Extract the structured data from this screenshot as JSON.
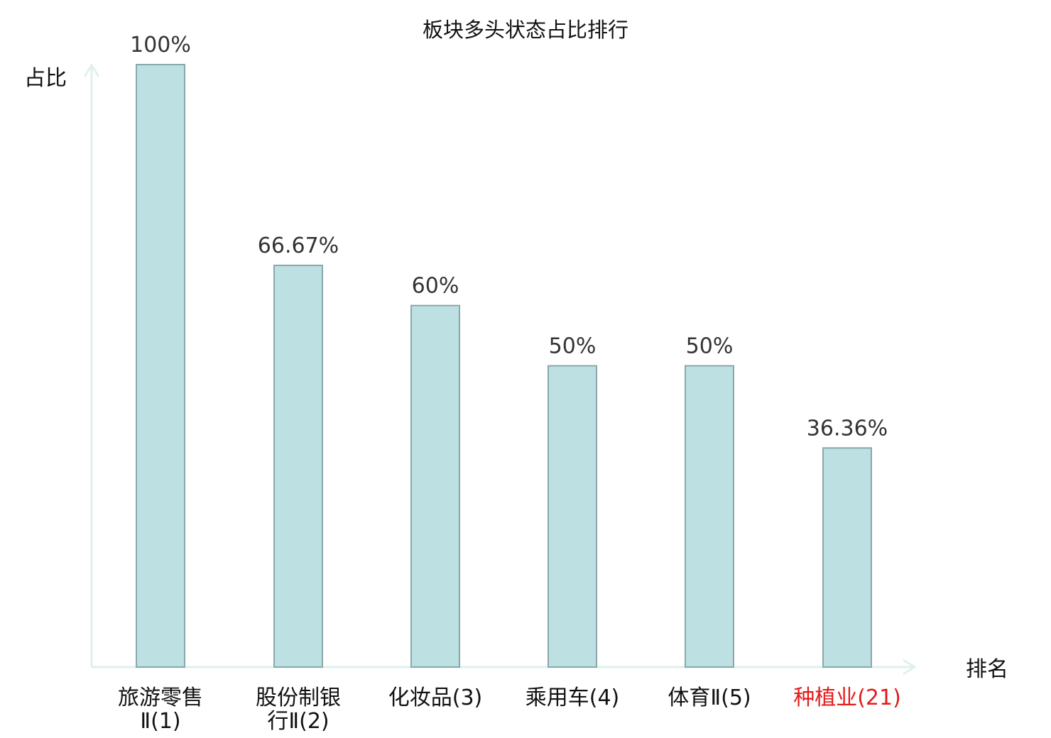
{
  "chart_data": {
    "type": "bar",
    "title": "板块多头状态占比排行",
    "ylabel": "占比",
    "xlabel": "排名",
    "ylim": [
      0,
      100
    ],
    "value_suffix": "%",
    "grid": false,
    "bar_color": "#bde0e3",
    "bar_edge_color": "#8aa8ab",
    "axis_color": "#dff1ee",
    "highlight_color": "#e41a1a",
    "categories": [
      {
        "name": "旅游零售Ⅱ",
        "rank": "(1)",
        "lines": [
          "旅游零售",
          "Ⅱ(1)"
        ],
        "highlight": false
      },
      {
        "name": "股份制银行Ⅱ",
        "rank": "(2)",
        "lines": [
          "股份制银",
          "行Ⅱ(2)"
        ],
        "highlight": false
      },
      {
        "name": "化妆品",
        "rank": "(3)",
        "lines": [
          "化妆品(3)"
        ],
        "highlight": false
      },
      {
        "name": "乘用车",
        "rank": "(4)",
        "lines": [
          "乘用车(4)"
        ],
        "highlight": false
      },
      {
        "name": "体育Ⅱ",
        "rank": "(5)",
        "lines": [
          "体育Ⅱ(5)"
        ],
        "highlight": false
      },
      {
        "name": "种植业",
        "rank": "(21)",
        "lines": [
          "种植业(21)"
        ],
        "highlight": true
      }
    ],
    "values": [
      100,
      66.67,
      60,
      50,
      50,
      36.36
    ],
    "value_labels": [
      "100%",
      "66.67%",
      "60%",
      "50%",
      "50%",
      "36.36%"
    ]
  }
}
